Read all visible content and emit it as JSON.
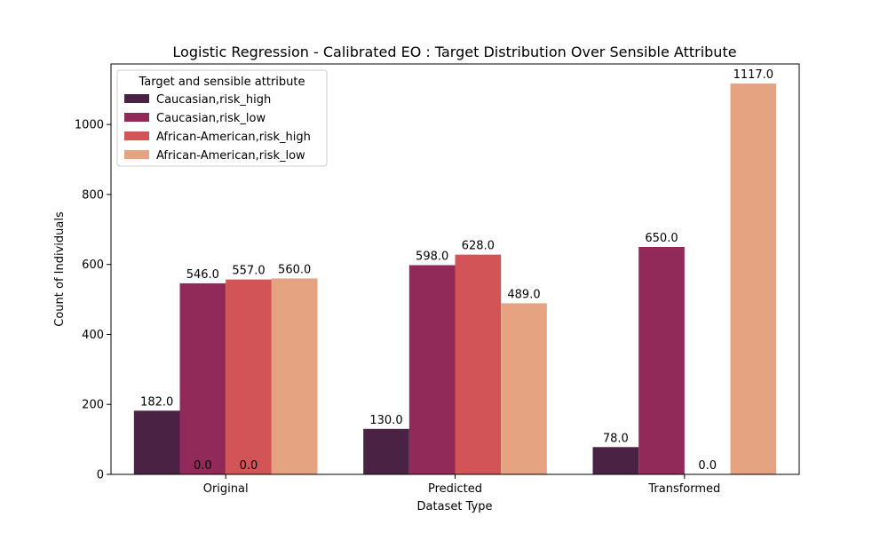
{
  "chart_data": {
    "type": "bar",
    "title": "Logistic Regression - Calibrated EO : Target Distribution Over Sensible Attribute",
    "xlabel": "Dataset Type",
    "ylabel": "Count of Individuals",
    "categories": [
      "Original",
      "Predicted",
      "Transformed"
    ],
    "ylim": [
      0,
      1173
    ],
    "yticks": [
      0,
      200,
      400,
      600,
      800,
      1000
    ],
    "legend": {
      "title": "Target and sensible attribute",
      "placement": "top-left"
    },
    "series": [
      {
        "name": "Caucasian,risk_high",
        "color": "#4a2244",
        "values": [
          182,
          130,
          78
        ],
        "labels": [
          "182.0",
          "130.0",
          "78.0"
        ]
      },
      {
        "name": "Caucasian,risk_low",
        "color": "#922a59",
        "values": [
          546,
          598,
          650
        ],
        "labels": [
          "546.0",
          "598.0",
          "650.0"
        ]
      },
      {
        "name": "African-American,risk_high",
        "color": "#d25457",
        "values": [
          557,
          628,
          0
        ],
        "labels": [
          "557.0",
          "628.0",
          "0.0"
        ]
      },
      {
        "name": "African-American,risk_low",
        "color": "#e6a381",
        "values": [
          560,
          489,
          1117
        ],
        "labels": [
          "560.0",
          "489.0",
          "1117.0"
        ]
      }
    ],
    "extra_labels": [
      {
        "category_index": 0,
        "series_index": 1,
        "text": "0.0"
      },
      {
        "category_index": 0,
        "series_index": 2,
        "text": "0.0"
      }
    ]
  }
}
